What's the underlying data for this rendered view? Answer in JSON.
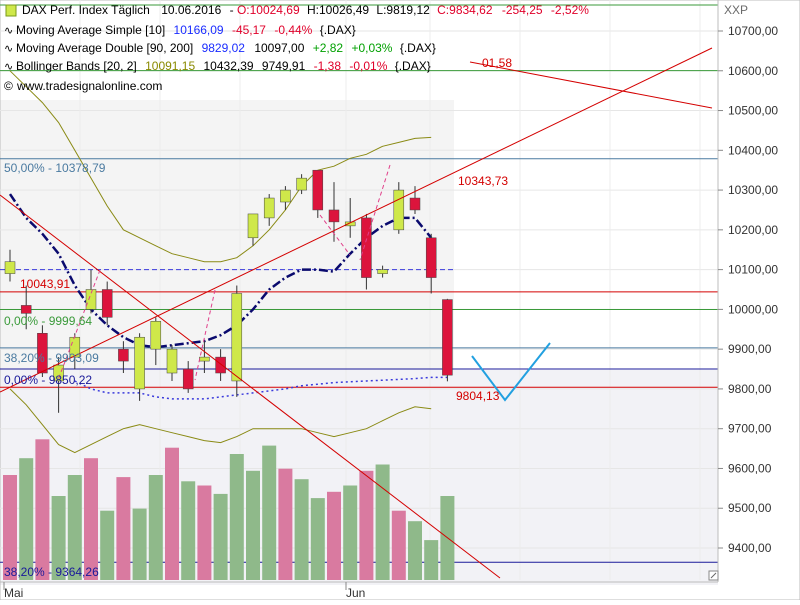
{
  "header": {
    "symbol": "DAX Perf. Index Täglich",
    "date": "10.06.2016",
    "ohlc_text": "O:10024,69",
    "h_text": "H:10026,49",
    "l_text": "L:9819,12",
    "c_text": "C:9834,62",
    "change_text": "-254,25",
    "pct_text": "-2,52%"
  },
  "indicators": [
    {
      "label": "Moving Average Simple [10]",
      "value": "10166,09",
      "change": "-45,17",
      "pct": "-0,44%",
      "suffix": "{.DAX}",
      "value_color": "#1a2cff",
      "change_color": "#e0002a"
    },
    {
      "label": "Moving Average Double [90, 200]",
      "value": "9829,02",
      "value2": "10097,00",
      "change": "+2,82",
      "pct": "+0,03%",
      "suffix": "{.DAX}",
      "value_color": "#1a2cff",
      "change_color": "#00a000"
    },
    {
      "label": "Bollinger Bands [20, 2]",
      "value": "10091,15",
      "value2": "10432,39",
      "value3": "9749,91",
      "change": "-1,38",
      "pct": "-0,01%",
      "suffix": "{.DAX}",
      "value_color": "#8a8a00",
      "change_color": "#e0002a"
    }
  ],
  "watermark": "www.tradesignalonline.com",
  "axis_unit": "XXP",
  "y_ticks": [
    "10700,00",
    "10600,00",
    "10500,00",
    "10400,00",
    "10300,00",
    "10200,00",
    "10100,00",
    "10000,00",
    "9900,00",
    "9800,00",
    "9700,00",
    "9600,00",
    "9500,00",
    "9400,00"
  ],
  "x_labels": [
    "Mai",
    "Jun"
  ],
  "annotations": {
    "fib50": "50,00% - 10378,79",
    "fib0a": "0,00% - 9999,64",
    "fib382a": "38,20% - 9903,09",
    "fib0b": "0,00% - 9850,22",
    "fib382b": "38,20% - 9364,26",
    "level_10043": "10043,91",
    "level_10343": "10343,73",
    "level_9804": "9804,13",
    "level_top": "01,58"
  },
  "colors": {
    "bull": "#cfe84a",
    "bear": "#dc143c",
    "ma_double": "#0a0a6e",
    "bollinger": "#8a8a14",
    "vol_up": "#8fb98a",
    "vol_down": "#d97aa0",
    "fib_line": "#4a7aa0",
    "trend_red": "#d40000",
    "green_line": "#3a9a3a"
  },
  "chart_data": {
    "type": "candlestick",
    "y_range": [
      9330,
      10760
    ],
    "candles": [
      {
        "o": 10090,
        "h": 10150,
        "l": 10070,
        "c": 10120
      },
      {
        "o": 10010,
        "h": 10060,
        "l": 9950,
        "c": 9990
      },
      {
        "o": 9940,
        "h": 9960,
        "l": 9830,
        "c": 9840
      },
      {
        "o": 9820,
        "h": 9880,
        "l": 9740,
        "c": 9860
      },
      {
        "o": 9880,
        "h": 9940,
        "l": 9850,
        "c": 9930
      },
      {
        "o": 10000,
        "h": 10100,
        "l": 9990,
        "c": 10050
      },
      {
        "o": 10050,
        "h": 10070,
        "l": 9960,
        "c": 9980
      },
      {
        "o": 9900,
        "h": 9920,
        "l": 9840,
        "c": 9870
      },
      {
        "o": 9800,
        "h": 9940,
        "l": 9770,
        "c": 9930
      },
      {
        "o": 9900,
        "h": 9980,
        "l": 9860,
        "c": 9970
      },
      {
        "o": 9840,
        "h": 9910,
        "l": 9820,
        "c": 9900
      },
      {
        "o": 9850,
        "h": 9870,
        "l": 9790,
        "c": 9800
      },
      {
        "o": 9870,
        "h": 9920,
        "l": 9840,
        "c": 9880
      },
      {
        "o": 9880,
        "h": 9900,
        "l": 9820,
        "c": 9840
      },
      {
        "o": 9820,
        "h": 10060,
        "l": 9780,
        "c": 10040
      },
      {
        "o": 10180,
        "h": 10240,
        "l": 10160,
        "c": 10240
      },
      {
        "o": 10230,
        "h": 10290,
        "l": 10210,
        "c": 10280
      },
      {
        "o": 10270,
        "h": 10310,
        "l": 10250,
        "c": 10300
      },
      {
        "o": 10300,
        "h": 10340,
        "l": 10290,
        "c": 10330
      },
      {
        "o": 10350,
        "h": 10350,
        "l": 10230,
        "c": 10250
      },
      {
        "o": 10250,
        "h": 10320,
        "l": 10170,
        "c": 10220
      },
      {
        "o": 10210,
        "h": 10280,
        "l": 10180,
        "c": 10220
      },
      {
        "o": 10230,
        "h": 10240,
        "l": 10050,
        "c": 10080
      },
      {
        "o": 10090,
        "h": 10110,
        "l": 10080,
        "c": 10100
      },
      {
        "o": 10200,
        "h": 10320,
        "l": 10190,
        "c": 10300
      },
      {
        "o": 10280,
        "h": 10310,
        "l": 10240,
        "c": 10250
      },
      {
        "o": 10180,
        "h": 10190,
        "l": 10040,
        "c": 10080
      },
      {
        "o": 10024.69,
        "h": 10026.49,
        "l": 9819.12,
        "c": 9834.62
      }
    ],
    "volume": [
      50,
      58,
      67,
      40,
      50,
      58,
      33,
      49,
      34,
      50,
      63,
      47,
      45,
      41,
      60,
      52,
      64,
      53,
      48,
      39,
      42,
      45,
      52,
      55,
      33,
      28,
      19,
      40
    ],
    "volume_bull": [
      false,
      true,
      false,
      true,
      true,
      false,
      true,
      false,
      true,
      true,
      false,
      true,
      false,
      true,
      true,
      true,
      true,
      false,
      true,
      true,
      false,
      true,
      false,
      true,
      false,
      true,
      true,
      true
    ],
    "ma_double": [
      10290,
      10230,
      10190,
      10140,
      10060,
      10000,
      9960,
      9930,
      9910,
      9905,
      9910,
      9915,
      9920,
      9935,
      9960,
      10000,
      10050,
      10080,
      10100,
      10100,
      10095,
      10140,
      10180,
      10210,
      10230,
      10230,
      10180
    ],
    "bollinger_upper": [
      10600,
      10560,
      10520,
      10470,
      10400,
      10330,
      10260,
      10200,
      10180,
      10160,
      10140,
      10130,
      10120,
      10120,
      10130,
      10160,
      10200,
      10250,
      10310,
      10350,
      10360,
      10380,
      10390,
      10410,
      10420,
      10430,
      10432.39
    ],
    "bollinger_lower": [
      9800,
      9760,
      9710,
      9660,
      9640,
      9660,
      9680,
      9700,
      9710,
      9700,
      9690,
      9680,
      9670,
      9665,
      9680,
      9700,
      9700,
      9700,
      9700,
      9690,
      9680,
      9690,
      9700,
      9720,
      9740,
      9755,
      9749.91
    ],
    "ma_dotted": [
      9820,
      9800,
      9790,
      9790,
      9790,
      9780,
      9775,
      9775,
      9775,
      9780,
      9785,
      9790,
      9795,
      9800,
      9808,
      9812,
      9816,
      9818,
      9820,
      9822,
      9824,
      9826,
      9829,
      9829.02
    ]
  }
}
